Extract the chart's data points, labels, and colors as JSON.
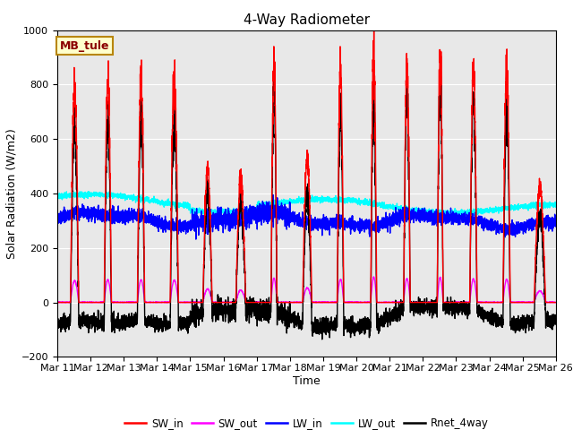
{
  "title": "4-Way Radiometer",
  "xlabel": "Time",
  "ylabel": "Solar Radiation (W/m2)",
  "ylim": [
    -200,
    1000
  ],
  "background_color": "#e8e8e8",
  "annotation_text": "MB_tule",
  "annotation_box_color": "#ffffcc",
  "annotation_text_color": "#8b0000",
  "annotation_border_color": "#b8860b",
  "x_tick_labels": [
    "Mar 11",
    "Mar 12",
    "Mar 13",
    "Mar 14",
    "Mar 15",
    "Mar 16",
    "Mar 17",
    "Mar 18",
    "Mar 19",
    "Mar 20",
    "Mar 21",
    "Mar 22",
    "Mar 23",
    "Mar 24",
    "Mar 25",
    "Mar 26"
  ],
  "yticks": [
    -200,
    0,
    200,
    400,
    600,
    800,
    1000
  ],
  "series": {
    "SW_in": {
      "color": "#ff0000",
      "linewidth": 1.0
    },
    "SW_out": {
      "color": "#ff00ff",
      "linewidth": 1.0
    },
    "LW_in": {
      "color": "#0000ff",
      "linewidth": 1.0
    },
    "LW_out": {
      "color": "#00ffff",
      "linewidth": 1.0
    },
    "Rnet_4way": {
      "color": "#000000",
      "linewidth": 1.0
    }
  },
  "legend_labels": [
    "SW_in",
    "SW_out",
    "LW_in",
    "LW_out",
    "Rnet_4way"
  ],
  "legend_colors": [
    "#ff0000",
    "#ff00ff",
    "#0000ff",
    "#00ffff",
    "#000000"
  ],
  "num_days": 15,
  "points_per_day": 288,
  "seed": 42
}
